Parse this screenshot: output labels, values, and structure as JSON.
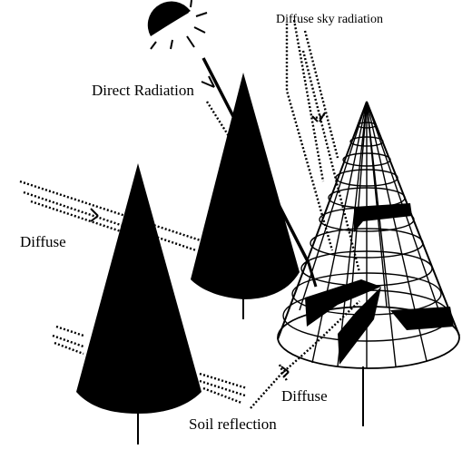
{
  "labels": {
    "diffuse_sky": "Diffuse sky radiation",
    "direct": "Direct Radiation",
    "diffuse_left": "Diffuse",
    "diffuse_bottom": "Diffuse",
    "soil": "Soil reflection"
  },
  "colors": {
    "ink": "#000000",
    "background": "#ffffff"
  },
  "icons": {
    "sun": "sun-icon"
  }
}
